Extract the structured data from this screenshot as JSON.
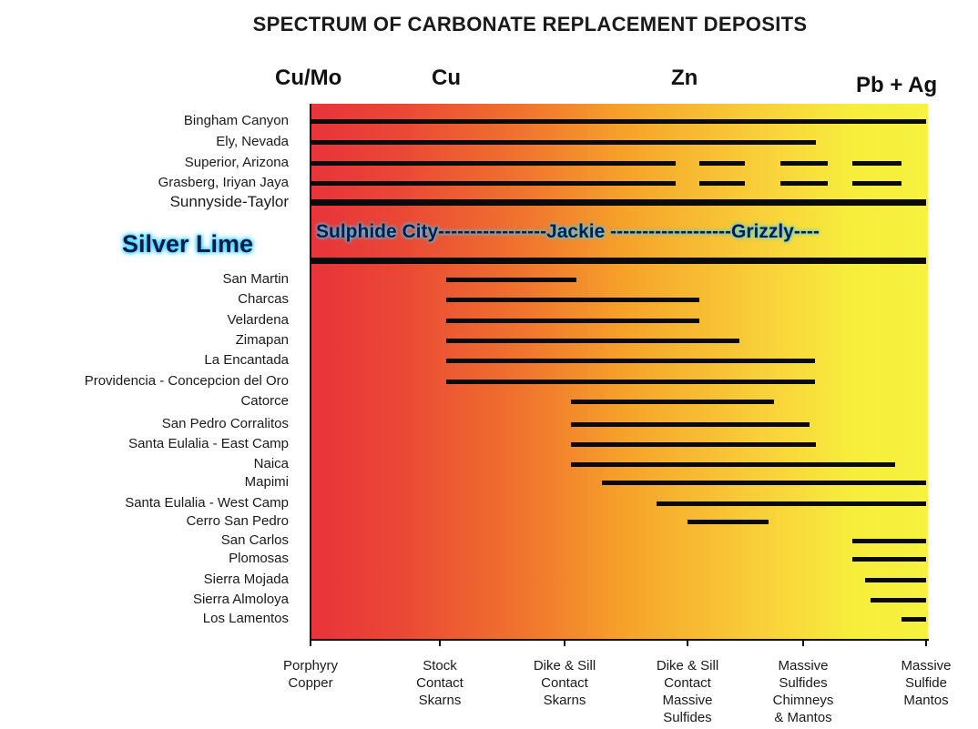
{
  "title": "SPECTRUM OF CARBONATE REPLACEMENT DEPOSITS",
  "metals": [
    "Cu/Mo",
    "Cu",
    "Zn",
    "Pb + Ag"
  ],
  "highlight": {
    "label": "Silver Lime",
    "annotation": "Sulphide City-----------------Jackie -------------------Grizzly----"
  },
  "x_categories": [
    [
      "Porphyry",
      "Copper"
    ],
    [
      "Stock",
      "Contact",
      "Skarns"
    ],
    [
      "Dike & Sill",
      "Contact",
      "Skarns"
    ],
    [
      "Dike & Sill",
      "Contact",
      "Massive",
      "Sulfides"
    ],
    [
      "Massive",
      "Sulfides",
      "Chimneys",
      "& Mantos"
    ],
    [
      "Massive",
      "Sulfide",
      "Mantos"
    ]
  ],
  "deposits": [
    {
      "name": "Bingham Canyon",
      "start": 0,
      "end": 5,
      "segments": []
    },
    {
      "name": "Ely, Nevada",
      "start": 0,
      "end": 4.1,
      "segments": []
    },
    {
      "name": "Superior, Arizona",
      "start": 0,
      "end": 4.8,
      "segments": [
        [
          0,
          2.9
        ],
        [
          3.1,
          3.5
        ],
        [
          3.8,
          4.2
        ],
        [
          4.4,
          4.8
        ]
      ]
    },
    {
      "name": "Grasberg, Iriyan Jaya",
      "start": 0,
      "end": 4.8,
      "segments": [
        [
          0,
          2.9
        ],
        [
          3.1,
          3.5
        ],
        [
          3.8,
          4.2
        ],
        [
          4.4,
          4.8
        ]
      ]
    },
    {
      "name": "Sunnyside-Taylor",
      "start": 0,
      "end": 5,
      "segments": []
    },
    {
      "name": "Silver Lime",
      "start": 0,
      "end": 5,
      "segments": []
    },
    {
      "name": "San Martin",
      "start": 1.05,
      "end": 2.1,
      "segments": []
    },
    {
      "name": "Charcas",
      "start": 1.05,
      "end": 3.1,
      "segments": []
    },
    {
      "name": "Velardena",
      "start": 1.05,
      "end": 3.1,
      "segments": []
    },
    {
      "name": "Zimapan",
      "start": 1.05,
      "end": 3.45,
      "segments": []
    },
    {
      "name": "La Encantada",
      "start": 1.05,
      "end": 4.1,
      "segments": []
    },
    {
      "name": "Providencia - Concepcion del Oro",
      "start": 1.05,
      "end": 4.1,
      "segments": []
    },
    {
      "name": "Catorce",
      "start": 2.05,
      "end": 3.75,
      "segments": []
    },
    {
      "name": "San Pedro Corralitos",
      "start": 2.05,
      "end": 4.05,
      "segments": []
    },
    {
      "name": "Santa Eulalia - East Camp",
      "start": 2.05,
      "end": 4.1,
      "segments": []
    },
    {
      "name": "Naica",
      "start": 2.05,
      "end": 4.75,
      "segments": []
    },
    {
      "name": "Mapimi",
      "start": 2.3,
      "end": 5,
      "segments": []
    },
    {
      "name": "Santa Eulalia - West Camp",
      "start": 2.75,
      "end": 5,
      "segments": []
    },
    {
      "name": "Cerro San Pedro",
      "start": 3.0,
      "end": 3.7,
      "segments": []
    },
    {
      "name": "San Carlos",
      "start": 4.4,
      "end": 5,
      "segments": []
    },
    {
      "name": "Plomosas",
      "start": 4.4,
      "end": 5,
      "segments": []
    },
    {
      "name": "Sierra Mojada",
      "start": 4.5,
      "end": 5,
      "segments": []
    },
    {
      "name": "Sierra Almoloya",
      "start": 4.55,
      "end": 5,
      "segments": []
    },
    {
      "name": "Los Lamentos",
      "start": 4.8,
      "end": 5,
      "segments": []
    }
  ]
}
